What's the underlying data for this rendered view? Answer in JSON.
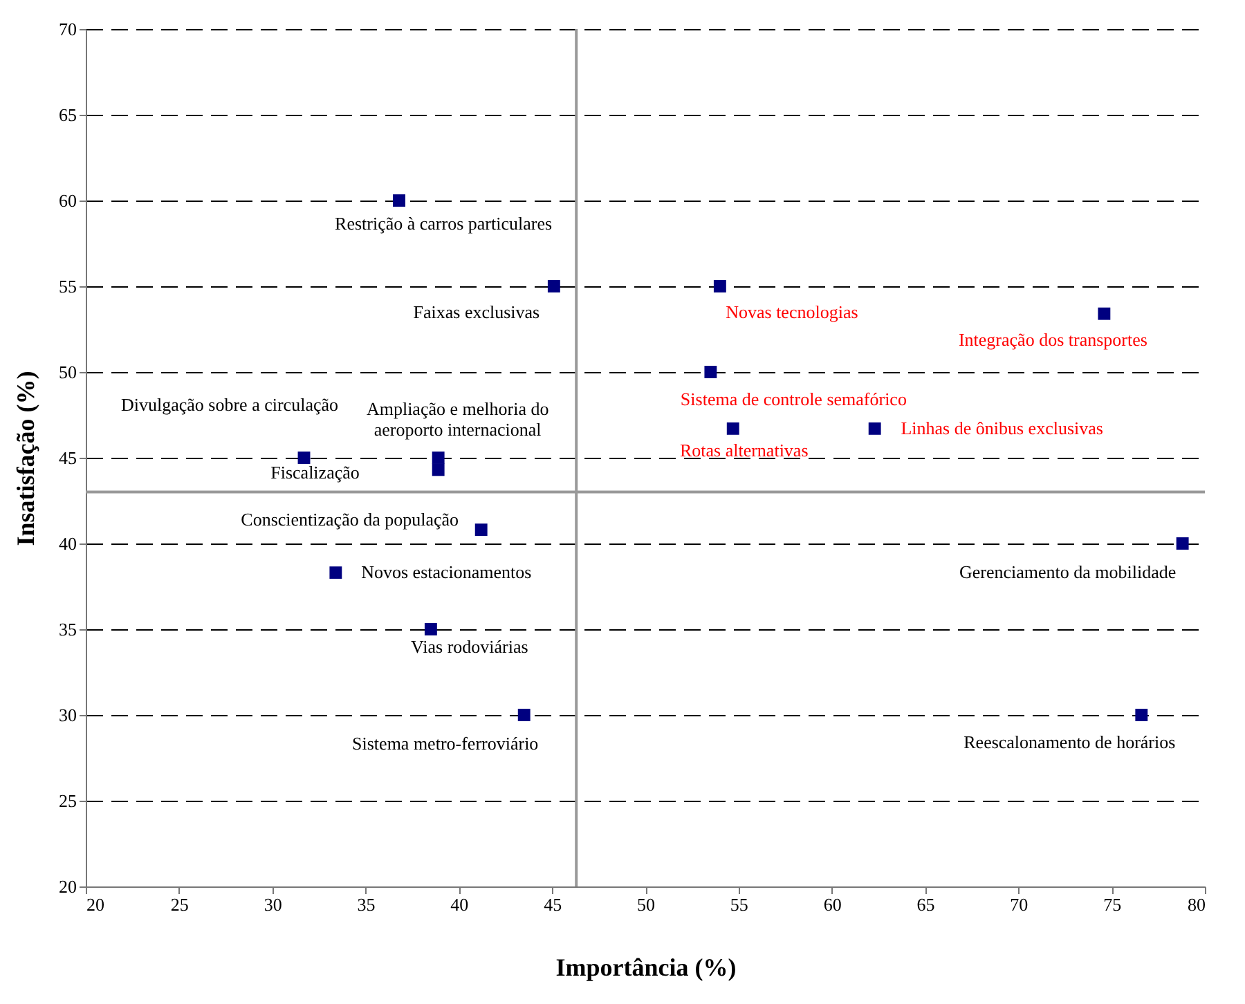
{
  "chart_data": {
    "type": "scatter",
    "xlabel": "Importância (%)",
    "ylabel": "Insatisfação (%)",
    "x": [
      36.8,
      45.1,
      54.0,
      74.6,
      53.5,
      54.7,
      62.3,
      31.7,
      38.9,
      38.9,
      41.2,
      33.4,
      38.5,
      43.5,
      78.8,
      76.6
    ],
    "series": [
      {
        "color": "#000080",
        "values": [
          60,
          55,
          55,
          53.4,
          50,
          46.7,
          46.7,
          45,
          45,
          44.3,
          40.8,
          38.3,
          35,
          30,
          40,
          30
        ]
      }
    ],
    "xlim": [
      20,
      80
    ],
    "xticks": [
      20,
      25,
      30,
      35,
      40,
      45,
      50,
      55,
      60,
      65,
      70,
      75,
      80
    ],
    "ylim": [
      20,
      70
    ],
    "yticks": [
      20,
      25,
      30,
      35,
      40,
      45,
      50,
      55,
      60,
      65,
      70
    ],
    "grid": "y",
    "marker": "square",
    "ref_lines": [
      {
        "axis": "x",
        "value": 46.3,
        "color": "#999999"
      },
      {
        "axis": "y",
        "value": 43,
        "color": "#999999"
      }
    ],
    "annotations": [
      {
        "text": "Restrição à carros particulares",
        "x": 36.8,
        "y": 60
      },
      {
        "text": "Faixas exclusivas",
        "x": 45.1,
        "y": 55
      },
      {
        "text": "Novas tecnologias",
        "x": 54.0,
        "y": 55
      },
      {
        "text": "Integração dos transportes",
        "x": 74.6,
        "y": 53.4
      },
      {
        "text": "Sistema de controle semafórico",
        "x": 53.5,
        "y": 50
      },
      {
        "text": "Rotas alternativas",
        "x": 54.7,
        "y": 46.7
      },
      {
        "text": "Linhas de ônibus exclusivas",
        "x": 62.3,
        "y": 46.7
      },
      "Divulgação sobre a circulação",
      {
        "text": "Ampliação e melhoria do\naeroporto internacional",
        "x": 38.9,
        "y": 45
      },
      {
        "text": "Fiscalização",
        "x": 31.7,
        "y": 45
      },
      {
        "text": "Conscientização da população",
        "x": 41.2,
        "y": 40.8
      },
      {
        "text": "Novos estacionamentos",
        "x": 33.4,
        "y": 38.3
      },
      {
        "text": "Vias rodoviárias",
        "x": 38.5,
        "y": 35
      },
      {
        "text": "Sistema metro-ferroviário",
        "x": 43.5,
        "y": 30
      },
      {
        "text": "Gerenciamento da mobilidade",
        "x": 78.8,
        "y": 40
      },
      {
        "text": "Reescalonamento de horários",
        "x": 76.6,
        "y": 30
      }
    ]
  }
}
